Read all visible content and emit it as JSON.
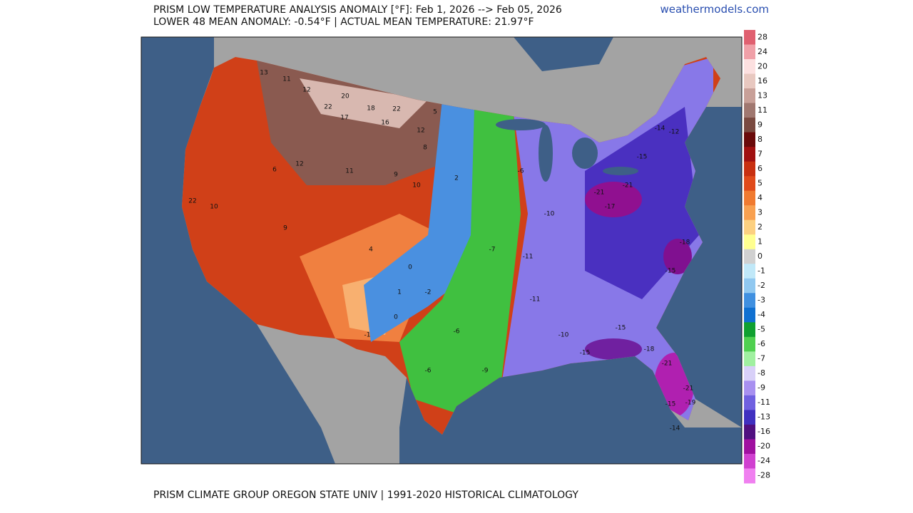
{
  "header": {
    "title": "PRISM LOW TEMPERATURE ANALYSIS ANOMALY [°F]: Feb 1, 2026 --> Feb 05, 2026",
    "subtitle": "LOWER 48 MEAN ANOMALY: -0.54°F | ACTUAL MEAN TEMPERATURE: 21.97°F",
    "source": "weathermodels.com"
  },
  "colorbar": {
    "labels": [
      28,
      24,
      20,
      16,
      13,
      11,
      9,
      8,
      7,
      6,
      5,
      4,
      3,
      2,
      1,
      0,
      -1,
      -2,
      -3,
      -4,
      -5,
      -6,
      -7,
      -8,
      -9,
      -11,
      -13,
      -16,
      -20,
      -24,
      -28
    ],
    "colors": [
      "#e06070",
      "#f0a0a8",
      "#fce0e0",
      "#e8c8c0",
      "#c8a098",
      "#a07870",
      "#7a4a40",
      "#6a0a0a",
      "#a01010",
      "#c83010",
      "#e04a1a",
      "#f07a30",
      "#f8a050",
      "#fcd080",
      "#ffff90",
      "#d0d0d0",
      "#c0e8f8",
      "#90c8f0",
      "#4090e0",
      "#1070d0",
      "#10a030",
      "#50d050",
      "#a0f0a0",
      "#d8d0f8",
      "#a890f0",
      "#7060e0",
      "#4030c0",
      "#501080",
      "#a010a0",
      "#d040d0",
      "#f080f0"
    ]
  },
  "map": {
    "labels": [
      13,
      11,
      12,
      20,
      22,
      17,
      18,
      22,
      16,
      12,
      5,
      8,
      2,
      10,
      9,
      11,
      12,
      6,
      10,
      22,
      9,
      4,
      0,
      1,
      0,
      -1,
      -2,
      -6,
      -9,
      -6,
      -11,
      -11,
      -10,
      -15,
      -21,
      -17,
      -21,
      -15,
      -14,
      -12,
      -18,
      -15,
      -18,
      -21,
      -21,
      -19,
      -15,
      -14,
      -15,
      -10,
      -7,
      -6
    ]
  },
  "footer": "PRISM CLIMATE GROUP OREGON STATE UNIV | 1991-2020 HISTORICAL CLIMATOLOGY"
}
